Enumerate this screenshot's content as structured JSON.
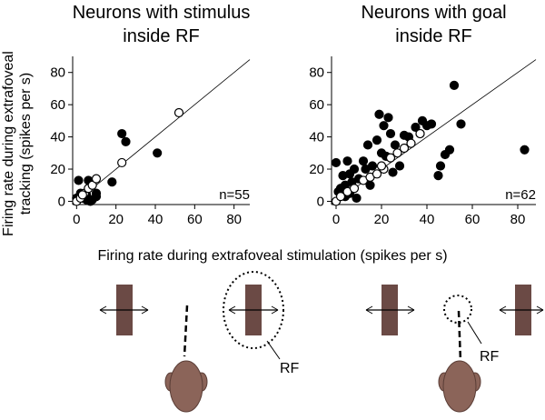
{
  "chart_data": [
    {
      "type": "scatter",
      "title": [
        "Neurons with stimulus",
        "inside RF"
      ],
      "annotation": "n=55",
      "xlim": [
        -2,
        88
      ],
      "ylim": [
        -2,
        90
      ],
      "xticks": [
        0,
        20,
        40,
        60,
        80
      ],
      "yticks": [
        0,
        20,
        40,
        60,
        80
      ],
      "identity_line": true,
      "series": [
        {
          "name": "filled",
          "color": "#000000",
          "fill": true,
          "x": [
            1,
            0,
            3,
            5,
            6,
            8,
            10,
            5,
            7,
            10,
            18,
            23,
            25,
            41,
            2
          ],
          "values": [
            13,
            2,
            2,
            4,
            13,
            1,
            3,
            1,
            0,
            5,
            12,
            42,
            37,
            30,
            5
          ]
        },
        {
          "name": "open",
          "color": "#000000",
          "fill": false,
          "x": [
            0,
            2,
            4,
            6,
            8,
            10,
            23,
            52,
            3
          ],
          "values": [
            0,
            2,
            5,
            8,
            10,
            14,
            24,
            55,
            4
          ]
        }
      ]
    },
    {
      "type": "scatter",
      "title": [
        "Neurons with goal",
        "inside RF"
      ],
      "annotation": "n=62",
      "xlim": [
        -2,
        88
      ],
      "ylim": [
        -2,
        90
      ],
      "xticks": [
        0,
        20,
        40,
        60,
        80
      ],
      "yticks": [
        0,
        20,
        40,
        60,
        80
      ],
      "identity_line": true,
      "series": [
        {
          "name": "filled",
          "color": "#000000",
          "fill": true,
          "x": [
            0,
            1,
            2,
            3,
            4,
            5,
            6,
            7,
            8,
            9,
            10,
            12,
            13,
            14,
            15,
            16,
            18,
            19,
            20,
            21,
            22,
            23,
            24,
            25,
            26,
            28,
            30,
            32,
            35,
            37,
            38,
            40,
            42,
            45,
            46,
            48,
            50,
            52,
            55,
            83,
            2,
            4,
            6
          ],
          "values": [
            24,
            6,
            8,
            16,
            10,
            25,
            17,
            12,
            20,
            2,
            14,
            25,
            20,
            35,
            10,
            22,
            38,
            54,
            30,
            47,
            28,
            52,
            42,
            18,
            35,
            22,
            41,
            40,
            46,
            42,
            50,
            47,
            48,
            16,
            22,
            29,
            32,
            72,
            48,
            32,
            4,
            3,
            5
          ]
        },
        {
          "name": "open",
          "color": "#000000",
          "fill": false,
          "x": [
            0,
            2,
            5,
            8,
            12,
            15,
            18,
            21,
            24,
            27,
            30,
            33,
            37,
            20
          ],
          "values": [
            0,
            3,
            6,
            8,
            13,
            15,
            17,
            20,
            27,
            30,
            33,
            36,
            42,
            22
          ]
        }
      ]
    }
  ],
  "ylabel": [
    "Firing rate during extrafoveal",
    "tracking (spikes per s)"
  ],
  "xlabel": "Firing rate during extrafoveal stimulation (spikes per s)",
  "diagram": {
    "rf_labels": [
      "RF",
      "RF"
    ]
  }
}
